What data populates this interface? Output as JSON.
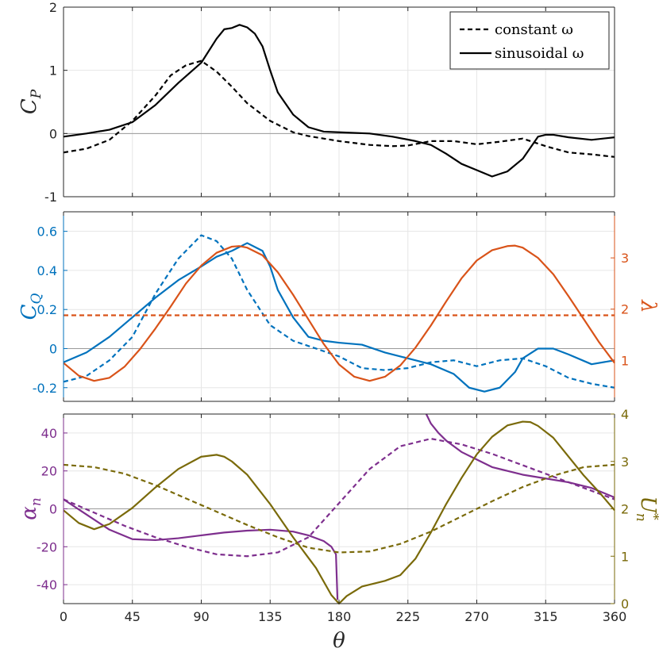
{
  "chart_data": [
    {
      "type": "line",
      "panel": "top",
      "ylabel": "C_P",
      "ylabel_main": "C",
      "ylabel_sub": "P",
      "xlim": [
        0,
        360
      ],
      "ylim": [
        -1,
        2
      ],
      "xticks": [
        0,
        45,
        90,
        135,
        180,
        225,
        270,
        315,
        360
      ],
      "yticks": [
        -1,
        0,
        1,
        2
      ],
      "ytick_labels": [
        "-1",
        "0",
        "1",
        "2"
      ],
      "legend": {
        "position": "top-right",
        "entries": [
          {
            "label": "constant ω",
            "style": "dashed",
            "color": "#000000"
          },
          {
            "label": "sinusoidal ω",
            "style": "solid",
            "color": "#000000"
          }
        ]
      },
      "series": [
        {
          "name": "constant ω",
          "style": "dashed",
          "color": "#000000",
          "x": [
            0,
            15,
            30,
            45,
            60,
            70,
            80,
            90,
            100,
            110,
            120,
            135,
            150,
            160,
            180,
            200,
            215,
            225,
            240,
            255,
            270,
            285,
            300,
            315,
            330,
            345,
            360
          ],
          "y": [
            -0.3,
            -0.24,
            -0.1,
            0.2,
            0.6,
            0.92,
            1.08,
            1.15,
            0.98,
            0.74,
            0.48,
            0.2,
            0.02,
            -0.04,
            -0.12,
            -0.18,
            -0.2,
            -0.19,
            -0.12,
            -0.12,
            -0.17,
            -0.13,
            -0.08,
            -0.2,
            -0.3,
            -0.33,
            -0.37
          ]
        },
        {
          "name": "sinusoidal ω",
          "style": "solid",
          "color": "#000000",
          "x": [
            0,
            15,
            30,
            45,
            60,
            75,
            90,
            100,
            105,
            110,
            115,
            120,
            125,
            130,
            135,
            140,
            150,
            160,
            170,
            180,
            200,
            215,
            230,
            240,
            250,
            260,
            270,
            280,
            290,
            300,
            310,
            315,
            320,
            330,
            345,
            360
          ],
          "y": [
            -0.05,
            0.0,
            0.06,
            0.18,
            0.45,
            0.8,
            1.12,
            1.5,
            1.65,
            1.67,
            1.72,
            1.68,
            1.58,
            1.38,
            1.0,
            0.65,
            0.3,
            0.1,
            0.03,
            0.02,
            0.0,
            -0.05,
            -0.12,
            -0.18,
            -0.32,
            -0.48,
            -0.58,
            -0.68,
            -0.6,
            -0.4,
            -0.05,
            -0.02,
            -0.02,
            -0.06,
            -0.1,
            -0.06
          ]
        }
      ]
    },
    {
      "type": "line",
      "panel": "middle",
      "ylabel": "C_Q",
      "ylabel_main": "C",
      "ylabel_sub": "Q",
      "y2label": "λ",
      "xlim": [
        0,
        360
      ],
      "ylim": [
        -0.27,
        0.7
      ],
      "y2lim": [
        0.2,
        3.9
      ],
      "xticks": [
        0,
        45,
        90,
        135,
        180,
        225,
        270,
        315,
        360
      ],
      "yticks": [
        -0.2,
        0,
        0.2,
        0.4,
        0.6
      ],
      "ytick_labels": [
        "-0.2",
        "0",
        "0.2",
        "0.4",
        "0.6"
      ],
      "y2ticks": [
        1,
        2,
        3
      ],
      "y2tick_labels": [
        "1",
        "2",
        "3"
      ],
      "left_color": "#0072BD",
      "right_color": "#D95319",
      "series": [
        {
          "name": "C_Q constant ω",
          "axis": "left",
          "style": "dashed",
          "color": "#0072BD",
          "x": [
            0,
            15,
            30,
            45,
            60,
            75,
            90,
            100,
            110,
            120,
            135,
            150,
            165,
            180,
            195,
            210,
            225,
            240,
            255,
            270,
            285,
            300,
            315,
            330,
            345,
            360
          ],
          "y": [
            -0.17,
            -0.14,
            -0.06,
            0.06,
            0.28,
            0.46,
            0.58,
            0.55,
            0.46,
            0.3,
            0.12,
            0.04,
            0.0,
            -0.04,
            -0.1,
            -0.11,
            -0.1,
            -0.07,
            -0.06,
            -0.09,
            -0.06,
            -0.05,
            -0.09,
            -0.15,
            -0.18,
            -0.2
          ]
        },
        {
          "name": "C_Q sinusoidal ω",
          "axis": "left",
          "style": "solid",
          "color": "#0072BD",
          "x": [
            0,
            15,
            30,
            45,
            60,
            75,
            90,
            100,
            110,
            120,
            130,
            135,
            140,
            150,
            160,
            170,
            180,
            195,
            210,
            225,
            240,
            255,
            265,
            275,
            285,
            295,
            300,
            310,
            315,
            320,
            330,
            345,
            360
          ],
          "y": [
            -0.07,
            -0.02,
            0.06,
            0.16,
            0.26,
            0.35,
            0.42,
            0.47,
            0.5,
            0.54,
            0.5,
            0.42,
            0.3,
            0.16,
            0.06,
            0.04,
            0.03,
            0.02,
            -0.02,
            -0.05,
            -0.08,
            -0.13,
            -0.2,
            -0.22,
            -0.2,
            -0.12,
            -0.05,
            0.0,
            0.0,
            0.0,
            -0.03,
            -0.08,
            -0.06
          ]
        },
        {
          "name": "λ constant ω",
          "axis": "right",
          "style": "dashed",
          "color": "#D95319",
          "x": [
            0,
            360
          ],
          "y": [
            1.88,
            1.88
          ]
        },
        {
          "name": "λ sinusoidal ω",
          "axis": "right",
          "style": "solid",
          "color": "#D95319",
          "x": [
            0,
            10,
            20,
            30,
            40,
            50,
            60,
            70,
            80,
            90,
            100,
            110,
            115,
            120,
            130,
            140,
            150,
            160,
            170,
            180,
            190,
            200,
            210,
            220,
            230,
            240,
            250,
            260,
            270,
            280,
            290,
            295,
            300,
            310,
            320,
            330,
            340,
            350,
            360
          ],
          "y": [
            0.95,
            0.7,
            0.6,
            0.66,
            0.88,
            1.22,
            1.62,
            2.05,
            2.5,
            2.85,
            3.1,
            3.22,
            3.23,
            3.2,
            3.05,
            2.72,
            2.28,
            1.8,
            1.32,
            0.92,
            0.68,
            0.6,
            0.68,
            0.9,
            1.25,
            1.68,
            2.15,
            2.6,
            2.95,
            3.15,
            3.23,
            3.24,
            3.2,
            3.0,
            2.68,
            2.25,
            1.8,
            1.35,
            0.95
          ]
        }
      ]
    },
    {
      "type": "line",
      "panel": "bottom",
      "ylabel": "α_n",
      "ylabel_main": "α",
      "ylabel_sub": "n",
      "y2label": "U*_n",
      "y2label_main": "U",
      "y2label_sup": "*",
      "y2label_sub": "n",
      "xlabel": "θ",
      "xlim": [
        0,
        360
      ],
      "ylim": [
        -50,
        50
      ],
      "y2lim": [
        0,
        4
      ],
      "xticks": [
        0,
        45,
        90,
        135,
        180,
        225,
        270,
        315,
        360
      ],
      "xtick_labels": [
        "0",
        "45",
        "90",
        "135",
        "180",
        "225",
        "270",
        "315",
        "360"
      ],
      "yticks": [
        -40,
        -20,
        0,
        20,
        40
      ],
      "ytick_labels": [
        "-40",
        "-20",
        "0",
        "20",
        "40"
      ],
      "y2ticks": [
        0,
        1,
        2,
        3,
        4
      ],
      "y2tick_labels": [
        "0",
        "1",
        "2",
        "3",
        "4"
      ],
      "left_color": "#7E2F8E",
      "right_color": "#7A6A0A",
      "series": [
        {
          "name": "α_n constant ω",
          "axis": "left",
          "style": "dashed",
          "color": "#7E2F8E",
          "x": [
            0,
            20,
            40,
            60,
            80,
            100,
            120,
            140,
            160,
            180,
            200,
            220,
            240,
            260,
            280,
            300,
            320,
            340,
            360
          ],
          "y": [
            5,
            -2,
            -9,
            -15,
            -20,
            -24,
            -25,
            -23,
            -15,
            3,
            21,
            33,
            37,
            34,
            29,
            23,
            17,
            11,
            5
          ]
        },
        {
          "name": "α_n sinusoidal ω",
          "axis": "left",
          "style": "solid",
          "color": "#7E2F8E",
          "x": [
            0,
            15,
            30,
            45,
            60,
            75,
            90,
            105,
            120,
            135,
            150,
            160,
            170,
            175,
            178,
            179
          ],
          "y": [
            5,
            -3,
            -11,
            -16,
            -16.5,
            -15.5,
            -14,
            -12.5,
            -11.5,
            -11,
            -12,
            -14,
            -17,
            -20,
            -24,
            -48
          ]
        },
        {
          "name": "α_n sinusoidal ω (after 180)",
          "axis": "left",
          "style": "solid",
          "color": "#7E2F8E",
          "x": [
            237,
            240,
            245,
            250,
            255,
            260,
            270,
            280,
            290,
            300,
            315,
            330,
            345,
            360
          ],
          "y": [
            50,
            45,
            40,
            36,
            33,
            30,
            26,
            22,
            20,
            18,
            16,
            14,
            11,
            6
          ]
        },
        {
          "name": "U*_n constant ω",
          "axis": "right",
          "style": "dashed",
          "color": "#7A6A0A",
          "x": [
            0,
            20,
            40,
            60,
            80,
            100,
            120,
            140,
            160,
            180,
            200,
            220,
            240,
            260,
            280,
            300,
            320,
            340,
            360
          ],
          "y": [
            2.93,
            2.88,
            2.74,
            2.5,
            2.22,
            1.94,
            1.66,
            1.4,
            1.18,
            1.08,
            1.1,
            1.26,
            1.52,
            1.84,
            2.16,
            2.46,
            2.7,
            2.88,
            2.93
          ]
        },
        {
          "name": "U*_n sinusoidal ω",
          "axis": "right",
          "style": "solid",
          "color": "#7A6A0A",
          "x": [
            0,
            10,
            20,
            30,
            45,
            60,
            75,
            90,
            100,
            105,
            110,
            120,
            135,
            150,
            165,
            175,
            180,
            185,
            195,
            210,
            220,
            230,
            240,
            250,
            260,
            270,
            280,
            290,
            300,
            305,
            310,
            320,
            330,
            340,
            350,
            360
          ],
          "y": [
            1.97,
            1.7,
            1.57,
            1.68,
            2.02,
            2.45,
            2.84,
            3.1,
            3.14,
            3.1,
            3.0,
            2.72,
            2.1,
            1.4,
            0.75,
            0.18,
            0.0,
            0.16,
            0.36,
            0.48,
            0.6,
            0.95,
            1.5,
            2.1,
            2.65,
            3.15,
            3.52,
            3.76,
            3.84,
            3.83,
            3.75,
            3.5,
            3.1,
            2.7,
            2.35,
            1.97
          ]
        }
      ]
    }
  ]
}
